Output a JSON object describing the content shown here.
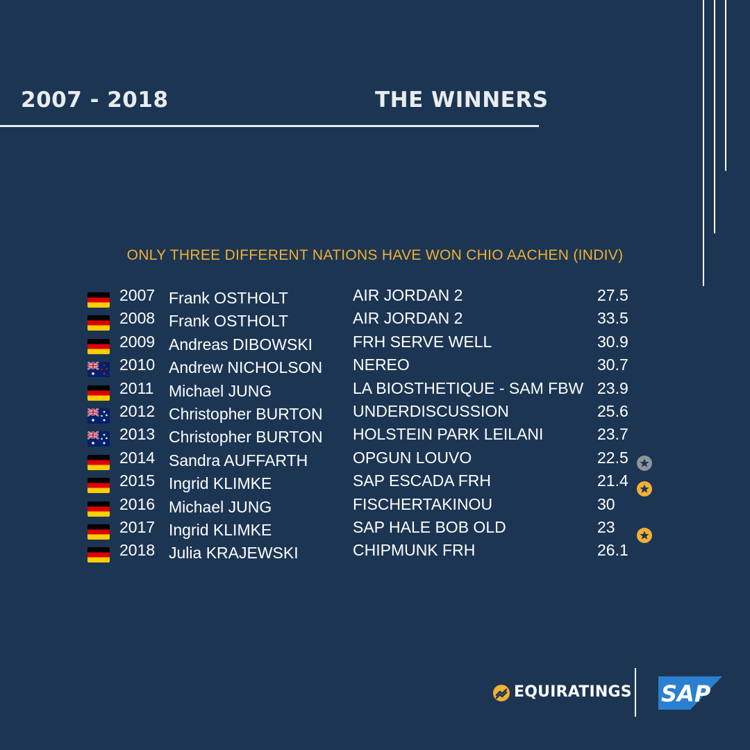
{
  "header": {
    "years": "2007 - 2018",
    "title": "THE WINNERS"
  },
  "subtitle": "ONLY THREE DIFFERENT NATIONS HAVE WON CHIO AACHEN (INDIV)",
  "rows": [
    {
      "flag": "germany-flag-icon",
      "year": "2007",
      "rider": "Frank OSTHOLT",
      "horse": "AIR JORDAN 2",
      "score": "27.5",
      "star": ""
    },
    {
      "flag": "germany-flag-icon",
      "year": "2008",
      "rider": "Frank OSTHOLT",
      "horse": "AIR JORDAN 2",
      "score": "33.5",
      "star": ""
    },
    {
      "flag": "germany-flag-icon",
      "year": "2009",
      "rider": "Andreas DIBOWSKI",
      "horse": "FRH SERVE WELL",
      "score": "30.9",
      "star": ""
    },
    {
      "flag": "new-zealand-flag-icon",
      "year": "2010",
      "rider": "Andrew NICHOLSON",
      "horse": "NEREO",
      "score": "30.7",
      "star": ""
    },
    {
      "flag": "germany-flag-icon",
      "year": "2011",
      "rider": "Michael JUNG",
      "horse": "LA BIOSTHETIQUE - SAM FBW",
      "score": "23.9",
      "star": ""
    },
    {
      "flag": "australia-flag-icon",
      "year": "2012",
      "rider": "Christopher BURTON",
      "horse": "UNDERDISCUSSION",
      "score": "25.6",
      "star": ""
    },
    {
      "flag": "australia-flag-icon",
      "year": "2013",
      "rider": "Christopher BURTON",
      "horse": "HOLSTEIN PARK LEILANI",
      "score": "23.7",
      "star": ""
    },
    {
      "flag": "germany-flag-icon",
      "year": "2014",
      "rider": "Sandra AUFFARTH",
      "horse": "OPGUN LOUVO",
      "score": "22.5",
      "star": "silver"
    },
    {
      "flag": "germany-flag-icon",
      "year": "2015",
      "rider": "Ingrid KLIMKE",
      "horse": "SAP ESCADA FRH",
      "score": "21.4",
      "star": "gold"
    },
    {
      "flag": "germany-flag-icon",
      "year": "2016",
      "rider": "Michael JUNG",
      "horse": "FISCHERTAKINOU",
      "score": "30",
      "star": ""
    },
    {
      "flag": "germany-flag-icon",
      "year": "2017",
      "rider": "Ingrid KLIMKE",
      "horse": "SAP HALE BOB OLD",
      "score": "23",
      "star": "gold"
    },
    {
      "flag": "germany-flag-icon",
      "year": "2018",
      "rider": "Julia KRAJEWSKI",
      "horse": "CHIPMUNK FRH",
      "score": "26.1",
      "star": ""
    }
  ],
  "colors": {
    "background": "#1c3553",
    "accent": "#f2b035",
    "silver_star": "#8d959c",
    "gold_star": "#f2b035"
  },
  "logos": {
    "equiratings": "EQUIRATINGS",
    "sap": "SAP"
  }
}
